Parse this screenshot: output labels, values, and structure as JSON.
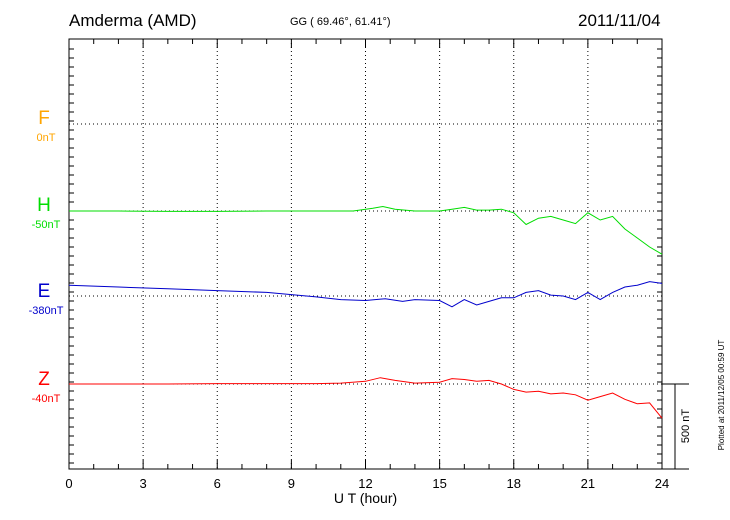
{
  "header": {
    "station": "Amderma (AMD)",
    "coords": "GG ( 69.46°,  61.41°)",
    "date": "2011/11/04"
  },
  "footer_note": "Plotted at 2011/12/05 00:59 UT",
  "chart_data": {
    "type": "line",
    "xlabel": "U T (hour)",
    "xlim": [
      0,
      24
    ],
    "xticks": [
      "0",
      "3",
      "6",
      "9",
      "12",
      "15",
      "18",
      "21",
      "24"
    ],
    "scale_bar_label": "500 nT",
    "grid": true,
    "series": [
      {
        "name": "F",
        "offset_label": "0nT",
        "color": "#ffa500",
        "x": [],
        "values": []
      },
      {
        "name": "H",
        "offset_label": "-50nT",
        "color": "#00dd00",
        "x": [
          0,
          2,
          4,
          6,
          8,
          10,
          11.5,
          12.3,
          12.7,
          13.2,
          14,
          15,
          15.5,
          16,
          16.5,
          17,
          17.5,
          18,
          18.5,
          19,
          19.5,
          20,
          20.5,
          21,
          21.5,
          22,
          22.5,
          23,
          23.5,
          24
        ],
        "values": [
          -50,
          -50,
          -52,
          -52,
          -50,
          -50,
          -50,
          -35,
          -25,
          -40,
          -50,
          -50,
          -40,
          -30,
          -45,
          -45,
          -40,
          -60,
          -125,
          -90,
          -80,
          -100,
          -120,
          -60,
          -100,
          -80,
          -150,
          -200,
          -250,
          -290
        ]
      },
      {
        "name": "E",
        "offset_label": "-380nT",
        "color": "#0000cc",
        "x": [
          0,
          2,
          4,
          6,
          8,
          10,
          11,
          12,
          12.8,
          13.5,
          14,
          15,
          15.5,
          16,
          16.5,
          17,
          17.5,
          18,
          18.5,
          19,
          19.5,
          20,
          20.5,
          21,
          21.5,
          22,
          22.5,
          23,
          23.5,
          24
        ],
        "values": [
          -320,
          -330,
          -340,
          -350,
          -360,
          -385,
          -400,
          -405,
          -395,
          -410,
          -400,
          -405,
          -440,
          -400,
          -430,
          -410,
          -390,
          -390,
          -360,
          -350,
          -375,
          -380,
          -400,
          -360,
          -400,
          -360,
          -330,
          -320,
          -300,
          -310
        ]
      },
      {
        "name": "Z",
        "offset_label": "-40nT",
        "color": "#ff0000",
        "x": [
          0,
          2,
          4,
          6,
          8,
          10,
          11,
          12,
          12.6,
          13.2,
          14,
          15,
          15.5,
          16,
          16.5,
          17,
          17.5,
          18,
          18.5,
          19,
          19.5,
          20,
          20.5,
          21,
          21.5,
          22,
          22.5,
          23,
          23.5,
          24
        ],
        "values": [
          -40,
          -40,
          -40,
          -38,
          -38,
          -38,
          -35,
          -25,
          -5,
          -20,
          -35,
          -30,
          -10,
          -15,
          -25,
          -20,
          -40,
          -70,
          -85,
          -80,
          -95,
          -90,
          -100,
          -130,
          -110,
          -90,
          -125,
          -150,
          -145,
          -230
        ]
      }
    ]
  }
}
